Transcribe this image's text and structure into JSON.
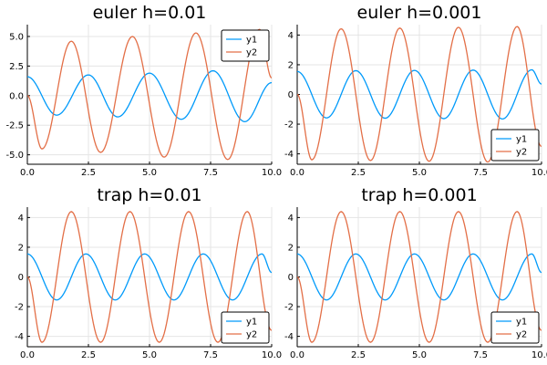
{
  "chart_data": [
    {
      "type": "line",
      "title": "euler h=0.01",
      "xlim": [
        0,
        10
      ],
      "ylim": [
        -5.8,
        6.0
      ],
      "xticks": [
        0,
        2.5,
        5,
        7.5,
        10
      ],
      "xtick_labels": [
        "0.0",
        "2.5",
        "5.0",
        "7.5",
        "10.0"
      ],
      "yticks": [
        -5,
        -2.5,
        0,
        2.5,
        5
      ],
      "ytick_labels": [
        "-5.0",
        "-2.5",
        "0.0",
        "2.5",
        "5.0"
      ],
      "grid": true,
      "legend_position": "top-right",
      "series": [
        {
          "name": "y1",
          "color": "#009AFA",
          "x": [
            0,
            1.2,
            2.5,
            3.7,
            5.0,
            6.3,
            7.6,
            8.9,
            10.0
          ],
          "y": [
            1.6,
            -1.65,
            1.75,
            -1.8,
            1.9,
            -2.0,
            2.1,
            -2.2,
            1.1
          ]
        },
        {
          "name": "y2",
          "color": "#E36F47",
          "x": [
            0,
            0.6,
            1.8,
            3.0,
            4.3,
            5.6,
            6.9,
            8.2,
            9.5,
            10.0
          ],
          "y": [
            0,
            -4.5,
            4.6,
            -4.8,
            5.0,
            -5.2,
            5.3,
            -5.4,
            5.6,
            1.5
          ]
        }
      ]
    },
    {
      "type": "line",
      "title": "euler h=0.001",
      "xlim": [
        0,
        10
      ],
      "ylim": [
        -4.7,
        4.7
      ],
      "xticks": [
        0,
        2.5,
        5,
        7.5,
        10
      ],
      "xtick_labels": [
        "0.0",
        "2.5",
        "5.0",
        "7.5",
        "10.0"
      ],
      "yticks": [
        -4,
        -2,
        0,
        2,
        4
      ],
      "ytick_labels": [
        "-4",
        "-2",
        "0",
        "2",
        "4"
      ],
      "grid": true,
      "legend_position": "bottom-right",
      "series": [
        {
          "name": "y1",
          "color": "#009AFA",
          "x": [
            0,
            1.2,
            2.4,
            3.6,
            4.8,
            6.0,
            7.2,
            8.4,
            9.6,
            10.0
          ],
          "y": [
            1.55,
            -1.58,
            1.6,
            -1.6,
            1.62,
            -1.63,
            1.64,
            -1.65,
            1.66,
            0.7
          ]
        },
        {
          "name": "y2",
          "color": "#E36F47",
          "x": [
            0,
            0.6,
            1.8,
            3.0,
            4.2,
            5.4,
            6.6,
            7.8,
            9.0,
            10.0
          ],
          "y": [
            0,
            -4.4,
            4.42,
            -4.45,
            4.47,
            -4.5,
            4.52,
            -4.55,
            4.57,
            -3.5
          ]
        }
      ]
    },
    {
      "type": "line",
      "title": "trap h=0.01",
      "xlim": [
        0,
        10
      ],
      "ylim": [
        -4.7,
        4.7
      ],
      "xticks": [
        0,
        2.5,
        5,
        7.5,
        10
      ],
      "xtick_labels": [
        "0.0",
        "2.5",
        "5.0",
        "7.5",
        "10.0"
      ],
      "yticks": [
        -4,
        -2,
        0,
        2,
        4
      ],
      "ytick_labels": [
        "-4",
        "-2",
        "0",
        "2",
        "4"
      ],
      "grid": true,
      "legend_position": "bottom-right",
      "series": [
        {
          "name": "y1",
          "color": "#009AFA",
          "x": [
            0,
            1.2,
            2.4,
            3.6,
            4.8,
            6.0,
            7.2,
            8.4,
            9.6,
            10.0
          ],
          "y": [
            1.55,
            -1.55,
            1.55,
            -1.55,
            1.55,
            -1.55,
            1.55,
            -1.55,
            1.55,
            0.3
          ]
        },
        {
          "name": "y2",
          "color": "#E36F47",
          "x": [
            0,
            0.6,
            1.8,
            3.0,
            4.2,
            5.4,
            6.6,
            7.8,
            9.0,
            10.0
          ],
          "y": [
            0,
            -4.4,
            4.4,
            -4.4,
            4.4,
            -4.4,
            4.4,
            -4.4,
            4.4,
            -3.6
          ]
        }
      ]
    },
    {
      "type": "line",
      "title": "trap h=0.001",
      "xlim": [
        0,
        10
      ],
      "ylim": [
        -4.7,
        4.7
      ],
      "xticks": [
        0,
        2.5,
        5,
        7.5,
        10
      ],
      "xtick_labels": [
        "0.0",
        "2.5",
        "5.0",
        "7.5",
        "10.0"
      ],
      "yticks": [
        -4,
        -2,
        0,
        2,
        4
      ],
      "ytick_labels": [
        "-4",
        "-2",
        "0",
        "2",
        "4"
      ],
      "grid": true,
      "legend_position": "bottom-right",
      "series": [
        {
          "name": "y1",
          "color": "#009AFA",
          "x": [
            0,
            1.2,
            2.4,
            3.6,
            4.8,
            6.0,
            7.2,
            8.4,
            9.6,
            10.0
          ],
          "y": [
            1.55,
            -1.55,
            1.55,
            -1.55,
            1.55,
            -1.55,
            1.55,
            -1.55,
            1.55,
            0.3
          ]
        },
        {
          "name": "y2",
          "color": "#E36F47",
          "x": [
            0,
            0.6,
            1.8,
            3.0,
            4.2,
            5.4,
            6.6,
            7.8,
            9.0,
            10.0
          ],
          "y": [
            0,
            -4.4,
            4.4,
            -4.4,
            4.4,
            -4.4,
            4.4,
            -4.4,
            4.4,
            -3.6
          ]
        }
      ]
    }
  ]
}
